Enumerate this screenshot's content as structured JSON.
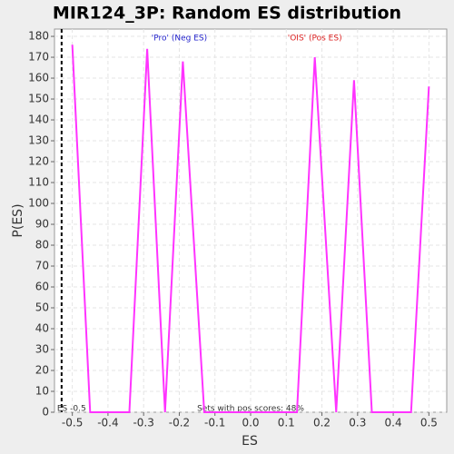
{
  "chart_data": {
    "type": "line",
    "title": "MIR124_3P: Random ES distribution",
    "xlabel": "ES",
    "ylabel": "P(ES)",
    "x": [
      -0.5,
      -0.45,
      -0.34,
      -0.29,
      -0.24,
      -0.19,
      -0.13,
      0.13,
      0.18,
      0.24,
      0.29,
      0.34,
      0.45,
      0.5
    ],
    "series": [
      {
        "name": "P(ES)",
        "color": "#ff33ff",
        "values": [
          176,
          0,
          0,
          174,
          0,
          168,
          0,
          0,
          170,
          0,
          159,
          0,
          0,
          156
        ]
      }
    ],
    "xlim": [
      -0.55,
      0.55
    ],
    "ylim": [
      0,
      183.5
    ],
    "xticks": [
      -0.5,
      -0.4,
      -0.3,
      -0.2,
      -0.1,
      {
        "value": 0,
        "label": "0.0"
      },
      0.1,
      0.2,
      0.3,
      0.4,
      0.5
    ],
    "yticks": [
      0,
      10,
      20,
      30,
      40,
      50,
      60,
      70,
      80,
      90,
      100,
      110,
      120,
      130,
      140,
      150,
      160,
      170,
      180
    ],
    "grid": true,
    "vline": {
      "value": -0.53,
      "label": "ES -0.5"
    },
    "annotations": [
      {
        "text": "'Pro' (Neg ES)",
        "color": "#2222cc",
        "x": -0.2
      },
      {
        "text": "'OIS' (Pos ES)",
        "color": "#dd2222",
        "x": 0.18
      }
    ],
    "footnote": "Sets with pos scores: 48%"
  }
}
